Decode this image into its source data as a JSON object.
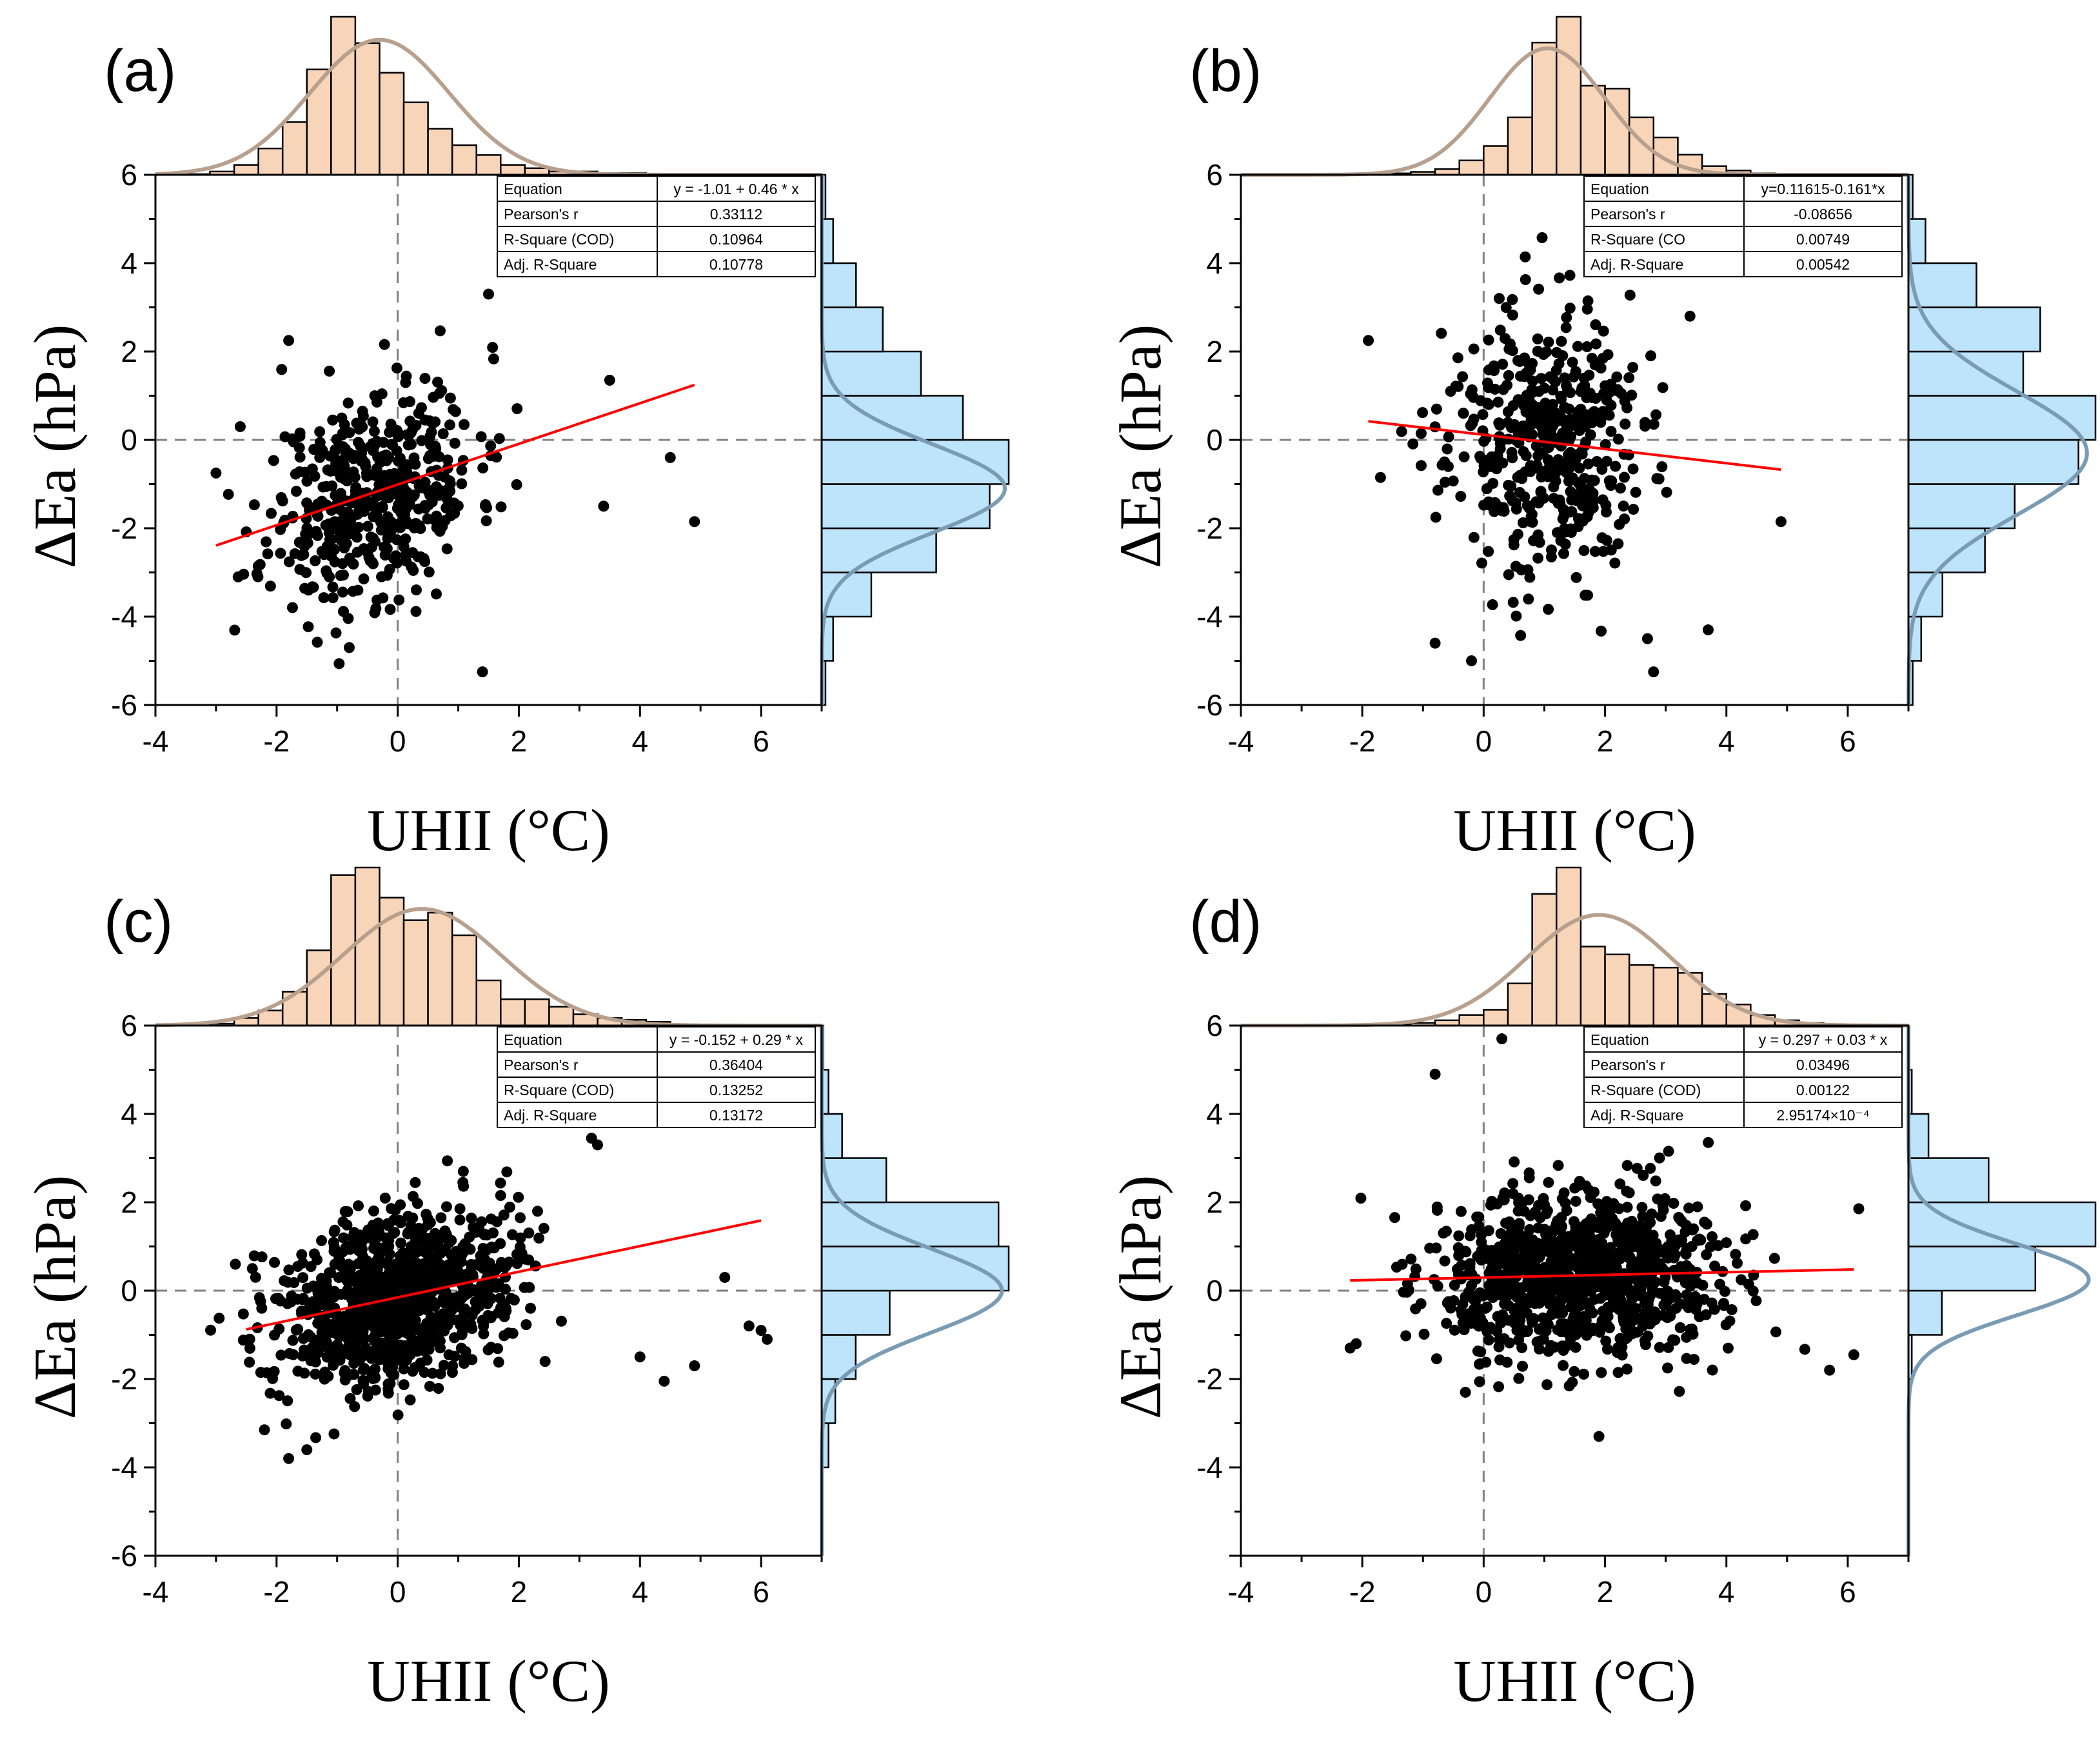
{
  "figure": {
    "x_label": "UHII (°C)",
    "y_label": "ΔEa (hPa)",
    "colors": {
      "points": "#000000",
      "fit_line": "#ff0000",
      "top_hist_fill": "#f8d5b8",
      "top_curve": "#b8a08e",
      "right_hist_fill": "#bde4fb",
      "right_curve": "#7a9bb4",
      "ref_line": "#808080"
    }
  },
  "chart_data": [
    {
      "panel": "(a)",
      "type": "scatter",
      "xlim": [
        -4,
        7
      ],
      "ylim": [
        -6,
        6
      ],
      "x_ticks": [
        "-4",
        "-2",
        "0",
        "2",
        "4",
        "6"
      ],
      "y_ticks": [
        "-6",
        "-4",
        "-2",
        "0",
        "2",
        "4",
        "6"
      ],
      "table": [
        [
          "Equation",
          "y = -1.01 + 0.46 * x"
        ],
        [
          "Pearson's r",
          "0.33112"
        ],
        [
          "R-Square (COD)",
          "0.10964"
        ],
        [
          "Adj. R-Square",
          "0.10778"
        ]
      ],
      "fit": {
        "intercept": -1.01,
        "slope": 0.46,
        "x_range": [
          -3.0,
          4.9
        ]
      },
      "points": {
        "n": 480,
        "x_mean": -0.4,
        "x_sd": 0.85,
        "y_sd": 1.2,
        "seed": 11,
        "outliers": [
          [
            -3.0,
            -0.75
          ],
          [
            -1.8,
            2.25
          ],
          [
            -2.6,
            0.3
          ],
          [
            1.4,
            -5.25
          ],
          [
            1.5,
            3.3
          ],
          [
            4.9,
            -1.85
          ],
          [
            4.5,
            -0.4
          ],
          [
            3.5,
            1.35
          ],
          [
            3.4,
            -1.5
          ],
          [
            -0.8,
            -4.7
          ]
        ]
      },
      "top_hist": {
        "bin_start": -3.5,
        "bin_width": 0.4,
        "counts": [
          0.2,
          1,
          3,
          8,
          16,
          32,
          48,
          40,
          31,
          22,
          14,
          9,
          6,
          3,
          2,
          1,
          1,
          0.5,
          0.5,
          0.2
        ],
        "curve": {
          "mean": -0.3,
          "sd": 1.15,
          "peak": 41
        }
      },
      "right_hist": {
        "bin_start": -6,
        "bin_width": 1,
        "counts": [
          1,
          3,
          13,
          30,
          44,
          49,
          37,
          26,
          16,
          9,
          3,
          1
        ],
        "curve": {
          "mean": -1.1,
          "sd": 1.0,
          "peak": 48
        }
      }
    },
    {
      "panel": "(b)",
      "type": "scatter",
      "xlim": [
        -4,
        7
      ],
      "ylim": [
        -6,
        6
      ],
      "x_ticks": [
        "-4",
        "-2",
        "0",
        "2",
        "4",
        "6"
      ],
      "y_ticks": [
        "-6",
        "-4",
        "-2",
        "0",
        "2",
        "4",
        "6"
      ],
      "table": [
        [
          "Equation",
          "y=0.11615-0.161*x"
        ],
        [
          "Pearson's r",
          "-0.08656"
        ],
        [
          "R-Square (CO",
          "0.00749"
        ],
        [
          "Adj. R-Square",
          "0.00542"
        ]
      ],
      "fit": {
        "intercept": 0.11615,
        "slope": -0.161,
        "x_range": [
          -1.9,
          4.9
        ]
      },
      "points": {
        "n": 470,
        "x_mean": 1.0,
        "x_sd": 0.8,
        "y_sd": 1.5,
        "seed": 23,
        "outliers": [
          [
            -1.9,
            2.25
          ],
          [
            -1.7,
            -0.85
          ],
          [
            -0.8,
            -4.6
          ],
          [
            -0.2,
            -5.0
          ],
          [
            2.8,
            -5.25
          ],
          [
            4.9,
            -1.85
          ],
          [
            3.7,
            -4.3
          ],
          [
            3.4,
            2.8
          ],
          [
            2.7,
            -4.5
          ]
        ]
      },
      "top_hist": {
        "bin_start": -2.0,
        "bin_width": 0.4,
        "counts": [
          0.2,
          0.5,
          1,
          2,
          5,
          10,
          20,
          46,
          55,
          31,
          30,
          20,
          13,
          7,
          3,
          1.5,
          0.5,
          0.3,
          0.2,
          0.1
        ],
        "curve": {
          "mean": 1.05,
          "sd": 0.95,
          "peak": 44
        }
      },
      "right_hist": {
        "bin_start": -6,
        "bin_width": 1,
        "counts": [
          1,
          3,
          8,
          18,
          25,
          40,
          44,
          27,
          31,
          16,
          4,
          1
        ],
        "curve": {
          "mean": -0.3,
          "sd": 1.4,
          "peak": 42
        }
      }
    },
    {
      "panel": "(c)",
      "type": "scatter",
      "xlim": [
        -4,
        7
      ],
      "ylim": [
        -6,
        6
      ],
      "x_ticks": [
        "-4",
        "-2",
        "0",
        "2",
        "4",
        "6"
      ],
      "y_ticks": [
        "-6",
        "-4",
        "-2",
        "0",
        "2",
        "4",
        "6"
      ],
      "table": [
        [
          "Equation",
          "y = -0.152 + 0.29 * x"
        ],
        [
          "Pearson's r",
          "0.36404"
        ],
        [
          "R-Square (COD)",
          "0.13252"
        ],
        [
          "Adj. R-Square",
          "0.13172"
        ]
      ],
      "fit": {
        "intercept": -0.152,
        "slope": 0.29,
        "x_range": [
          -2.5,
          6.0
        ]
      },
      "points": {
        "n": 950,
        "x_mean": 0.0,
        "x_sd": 0.95,
        "y_sd": 0.95,
        "seed": 37,
        "outliers": [
          [
            -2.4,
            0.5
          ],
          [
            6.0,
            -0.9
          ],
          [
            6.1,
            -1.1
          ],
          [
            5.8,
            -0.8
          ],
          [
            4.9,
            -1.7
          ],
          [
            5.4,
            0.3
          ],
          [
            4.4,
            -2.05
          ],
          [
            3.3,
            3.3
          ],
          [
            3.2,
            3.45
          ],
          [
            -2.2,
            -3.15
          ],
          [
            -1.5,
            -3.6
          ],
          [
            -1.8,
            -3.8
          ],
          [
            4.0,
            -1.5
          ]
        ]
      },
      "top_hist": {
        "bin_start": -3.5,
        "bin_width": 0.4,
        "counts": [
          0.2,
          0.5,
          2,
          4,
          9,
          20,
          40,
          42,
          34,
          28,
          30,
          24,
          12,
          7,
          7,
          5,
          3,
          2,
          1.5,
          1
        ],
        "curve": {
          "mean": 0.4,
          "sd": 1.3,
          "peak": 31
        }
      },
      "right_hist": {
        "bin_start": -6,
        "bin_width": 1,
        "counts": [
          0,
          0,
          2,
          4,
          10,
          20,
          55,
          52,
          19,
          6,
          2,
          0.5
        ],
        "curve": {
          "mean": 0.0,
          "sd": 0.95,
          "peak": 53
        }
      }
    },
    {
      "panel": "(d)",
      "type": "scatter",
      "xlim": [
        -4,
        7
      ],
      "ylim": [
        -6,
        6
      ],
      "x_ticks": [
        "-4",
        "-2",
        "0",
        "2",
        "4",
        "6"
      ],
      "y_ticks": [
        "-4",
        "-2",
        "0",
        "2",
        "4",
        "6"
      ],
      "table": [
        [
          "Equation",
          "y = 0.297 + 0.03 * x"
        ],
        [
          "Pearson's r",
          "0.03496"
        ],
        [
          "R-Square (COD)",
          "0.00122"
        ],
        [
          "Adj. R-Square",
          "2.95174×10⁻⁴"
        ]
      ],
      "fit": {
        "intercept": 0.297,
        "slope": 0.03,
        "x_range": [
          -2.2,
          6.1
        ]
      },
      "points": {
        "n": 1000,
        "x_mean": 1.6,
        "x_sd": 1.2,
        "y_sd": 0.95,
        "seed": 51,
        "outliers": [
          [
            -2.2,
            -1.3
          ],
          [
            -2.1,
            -1.2
          ],
          [
            -0.8,
            4.9
          ],
          [
            0.3,
            5.7
          ],
          [
            6.1,
            -1.45
          ],
          [
            5.7,
            -1.8
          ],
          [
            1.9,
            -3.3
          ],
          [
            -0.3,
            -2.3
          ]
        ]
      },
      "top_hist": {
        "bin_start": -2.0,
        "bin_width": 0.4,
        "counts": [
          0.2,
          0.5,
          1,
          2,
          4,
          6,
          16,
          50,
          60,
          30,
          27,
          23,
          22,
          20,
          12,
          8,
          4,
          2,
          1,
          0.5
        ],
        "curve": {
          "mean": 1.9,
          "sd": 1.2,
          "peak": 42
        }
      },
      "right_hist": {
        "bin_start": -6,
        "bin_width": 1,
        "counts": [
          0,
          0,
          0,
          0,
          1,
          10,
          38,
          56,
          24,
          6,
          1,
          0
        ],
        "curve": {
          "mean": 0.25,
          "sd": 0.8,
          "peak": 54
        }
      }
    }
  ]
}
